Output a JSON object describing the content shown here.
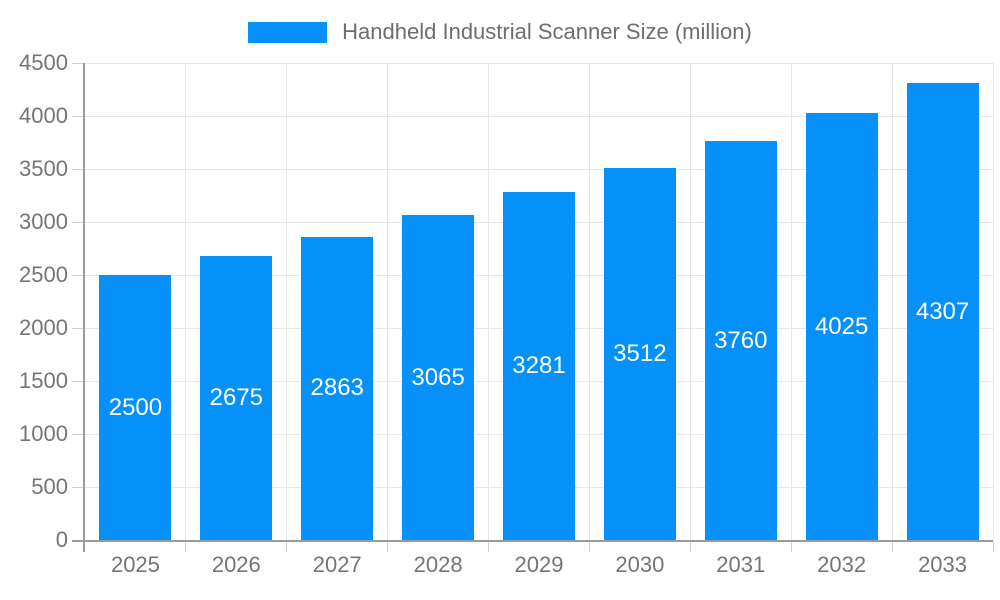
{
  "legend": {
    "label": "Handheld Industrial Scanner Size (million)"
  },
  "chart_data": {
    "type": "bar",
    "title": "Handheld Industrial Scanner Size (million)",
    "categories": [
      "2025",
      "2026",
      "2027",
      "2028",
      "2029",
      "2030",
      "2031",
      "2032",
      "2033"
    ],
    "values": [
      2500,
      2675,
      2863,
      3065,
      3281,
      3512,
      3760,
      4025,
      4307
    ],
    "series": [
      {
        "name": "Handheld Industrial Scanner Size (million)",
        "values": [
          2500,
          2675,
          2863,
          3065,
          3281,
          3512,
          3760,
          4025,
          4307
        ]
      }
    ],
    "xlabel": "",
    "ylabel": "",
    "ylim": [
      0,
      4500
    ],
    "y_ticks": [
      0,
      500,
      1000,
      1500,
      2000,
      2500,
      3000,
      3500,
      4000,
      4500
    ],
    "grid": true,
    "legend_position": "top",
    "value_labels_shown": true
  },
  "colors": {
    "bar": "#0590FA",
    "value_label": "#ffffff",
    "grid": "#e6e6e6",
    "axis": "#9b9b9b",
    "tick": "#cfcfcf",
    "tick_label": "#757575",
    "legend_text": "#6e6e6e",
    "background": "#ffffff"
  }
}
